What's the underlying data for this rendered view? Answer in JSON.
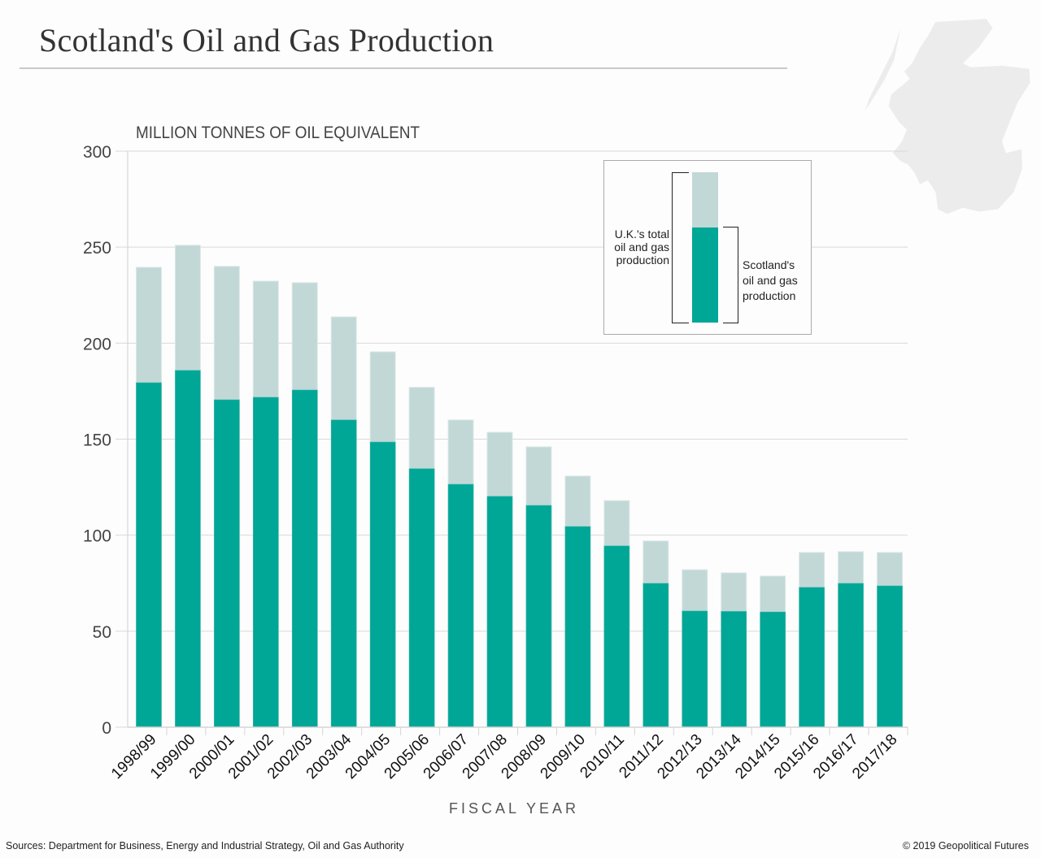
{
  "header": {
    "title": "Scotland's Oil and Gas Production"
  },
  "decoration": {
    "map_icon": "scotland-map-silhouette"
  },
  "legend": {
    "uk_label": "U.K.'s total oil and gas production",
    "scotland_label": "Scotland's oil and gas production"
  },
  "footer": {
    "sources": "Sources:  Department for Business, Energy and Industrial Strategy, Oil and Gas Authority",
    "copyright": "© 2019 Geopolitical Futures"
  },
  "colors": {
    "scotland": "#00a696",
    "uk_total": "#c2d8d7",
    "grid": "#d9d9d9"
  },
  "chart_data": {
    "type": "bar",
    "stacking": "overlay",
    "title": "Scotland's Oil and Gas Production",
    "ylabel": "MILLION TONNES OF OIL EQUIVALENT",
    "xlabel": "FISCAL YEAR",
    "ylim": [
      0,
      300
    ],
    "yticks": [
      0,
      50,
      100,
      150,
      200,
      250,
      300
    ],
    "grid": true,
    "legend_position": "top-right",
    "categories": [
      "1998/99",
      "1999/00",
      "2000/01",
      "2001/02",
      "2002/03",
      "2003/04",
      "2004/05",
      "2005/06",
      "2006/07",
      "2007/08",
      "2008/09",
      "2009/10",
      "2010/11",
      "2011/12",
      "2012/13",
      "2013/14",
      "2014/15",
      "2015/16",
      "2016/17",
      "2017/18"
    ],
    "series": [
      {
        "name": "U.K.'s total oil and gas production",
        "values": [
          239.5,
          251,
          240,
          232.3,
          231.5,
          213.7,
          195.5,
          177,
          160,
          153.6,
          146,
          130.8,
          118,
          97,
          82,
          80.4,
          78.7,
          91,
          91.4,
          91
        ]
      },
      {
        "name": "Scotland's oil and gas production",
        "values": [
          179.4,
          185.8,
          170.5,
          171.8,
          175.6,
          160,
          148.5,
          134.6,
          126.5,
          120.2,
          115.5,
          104.5,
          94.4,
          74.9,
          60.5,
          60.3,
          60,
          72.8,
          74.9,
          73.6
        ]
      }
    ]
  }
}
